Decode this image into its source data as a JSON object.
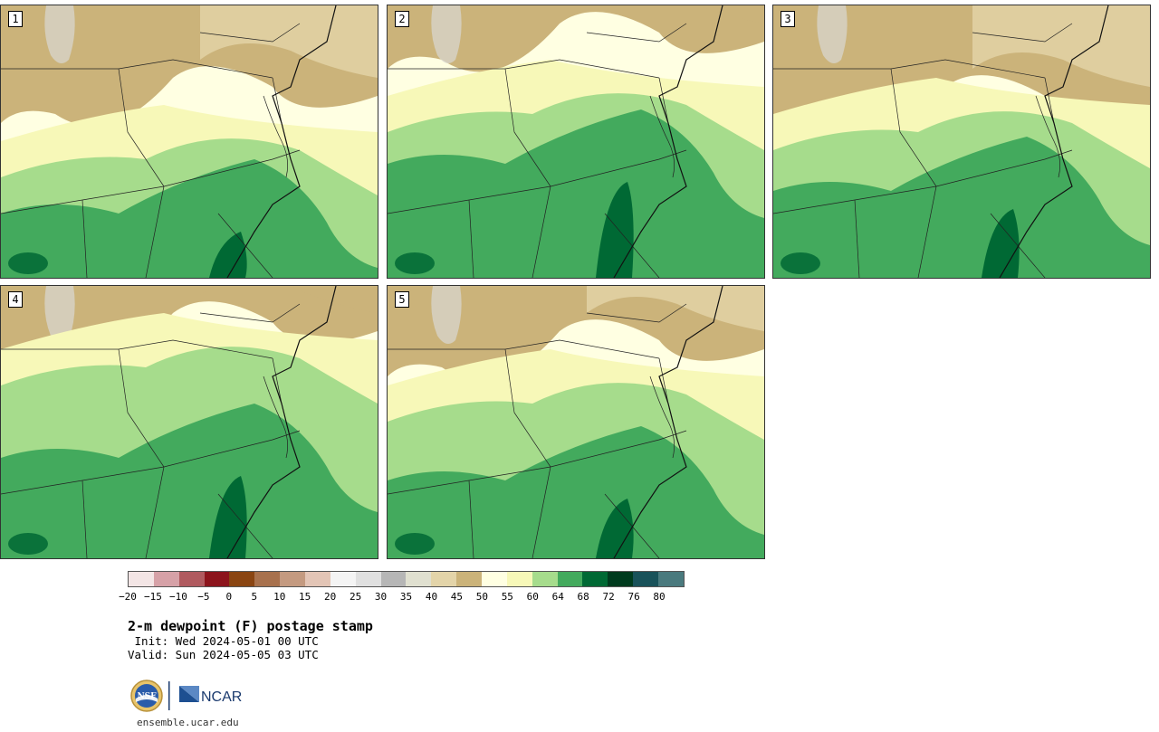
{
  "panels": [
    {
      "id": "1",
      "variant": 0
    },
    {
      "id": "2",
      "variant": 1
    },
    {
      "id": "3",
      "variant": 2
    },
    {
      "id": "4",
      "variant": 3
    },
    {
      "id": "5",
      "variant": 4
    }
  ],
  "colorbar": {
    "colors": [
      "#f3e5e5",
      "#d6a1a7",
      "#b05a5f",
      "#8c141c",
      "#8a4512",
      "#a8714d",
      "#c49a80",
      "#e3c5b6",
      "#f4f4f4",
      "#e0e0e0",
      "#b6b6b6",
      "#e0e0d0",
      "#e3d4a9",
      "#cbb37a",
      "#ffffe2",
      "#f7f8b8",
      "#a6dc8c",
      "#43aa5d",
      "#006934",
      "#003b1e",
      "#19525a",
      "#4a7a7e"
    ],
    "ticks": [
      "−20",
      "−15",
      "−10",
      "−5",
      "0",
      "5",
      "10",
      "15",
      "20",
      "25",
      "30",
      "35",
      "40",
      "45",
      "50",
      "55",
      "60",
      "64",
      "68",
      "72",
      "76",
      "80"
    ]
  },
  "title": "2-m dewpoint (F) postage stamp",
  "init": " Init: Wed 2024-05-01 00 UTC",
  "valid": "Valid: Sun 2024-05-05 03 UTC",
  "logos": {
    "nsf": "NSF",
    "ncar": "NCAR"
  },
  "site": "ensemble.ucar.edu"
}
